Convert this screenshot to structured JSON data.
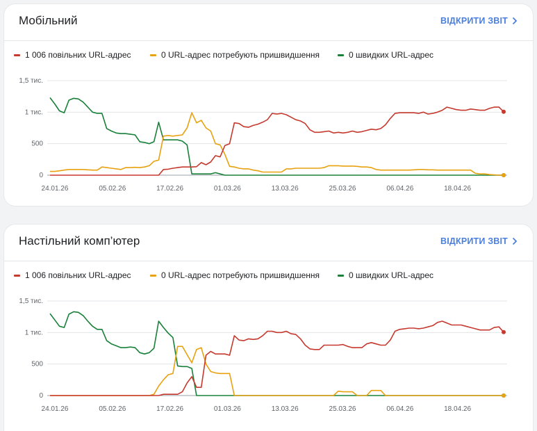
{
  "colors": {
    "slow": "#c5392f",
    "improve": "#e8a10f",
    "fast": "#188038",
    "link": "#4a7fe0"
  },
  "reports": [
    {
      "title": "Мобільний",
      "link_label": "ВІДКРИТИ ЗВІТ",
      "legend": [
        {
          "label": "1 006 повільних URL-адрес"
        },
        {
          "label": "0 URL-адрес потребують пришвидшення"
        },
        {
          "label": "0 швидких URL-адрес"
        }
      ],
      "chart_data": {
        "type": "line",
        "y_ticks": [
          "1,5 тис.",
          "1 тис.",
          "500",
          "0"
        ],
        "y_tick_values": [
          1500,
          1000,
          500,
          0
        ],
        "ylim": [
          0,
          1500
        ],
        "x_tick_labels": [
          "24.01.26",
          "05.02.26",
          "17.02.26",
          "01.03.26",
          "13.03.26",
          "25.03.26",
          "06.04.26",
          "18.04.26"
        ],
        "x_start": "24.01.26",
        "series": [
          {
            "color_key": "slow",
            "values": [
              0,
              0,
              0,
              0,
              0,
              0,
              0,
              0,
              0,
              0,
              0,
              0,
              0,
              0,
              0,
              0,
              0,
              0,
              0,
              0,
              0,
              0,
              0,
              0,
              90,
              95,
              110,
              120,
              130,
              130,
              130,
              135,
              200,
              165,
              210,
              310,
              290,
              470,
              500,
              830,
              820,
              770,
              760,
              790,
              810,
              840,
              880,
              980,
              970,
              980,
              960,
              920,
              880,
              860,
              820,
              720,
              680,
              680,
              690,
              700,
              670,
              680,
              670,
              680,
              700,
              680,
              690,
              710,
              730,
              720,
              740,
              800,
              900,
              980,
              990,
              990,
              990,
              990,
              980,
              1000,
              970,
              980,
              1000,
              1030,
              1080,
              1060,
              1040,
              1030,
              1030,
              1050,
              1040,
              1030,
              1030,
              1060,
              1080,
              1080,
              1006
            ]
          },
          {
            "color_key": "improve",
            "values": [
              60,
              60,
              70,
              80,
              90,
              90,
              90,
              90,
              85,
              80,
              80,
              130,
              120,
              110,
              100,
              90,
              120,
              120,
              125,
              120,
              130,
              150,
              220,
              240,
              620,
              630,
              620,
              630,
              640,
              750,
              990,
              830,
              870,
              750,
              700,
              500,
              480,
              330,
              140,
              130,
              110,
              100,
              100,
              80,
              70,
              50,
              50,
              50,
              50,
              50,
              100,
              100,
              110,
              110,
              110,
              110,
              110,
              110,
              120,
              150,
              150,
              150,
              145,
              145,
              145,
              140,
              130,
              130,
              120,
              90,
              80,
              80,
              80,
              80,
              80,
              80,
              80,
              85,
              90,
              90,
              85,
              85,
              80,
              80,
              80,
              80,
              80,
              80,
              80,
              80,
              30,
              20,
              20,
              10,
              5,
              0,
              0
            ]
          },
          {
            "color_key": "fast",
            "values": [
              1230,
              1130,
              1020,
              990,
              1190,
              1220,
              1210,
              1160,
              1080,
              1000,
              980,
              980,
              740,
              700,
              670,
              660,
              660,
              650,
              640,
              530,
              520,
              500,
              530,
              840,
              560,
              560,
              560,
              560,
              540,
              480,
              20,
              20,
              20,
              20,
              20,
              40,
              20,
              0,
              0,
              0,
              0,
              0,
              0,
              0,
              0,
              0,
              0,
              0,
              0,
              0,
              0,
              0,
              0,
              0,
              0,
              0,
              0,
              0,
              0,
              0,
              0,
              0,
              0,
              0,
              0,
              0,
              0,
              0,
              0,
              0,
              0,
              0,
              0,
              0,
              0,
              0,
              0,
              0,
              0,
              0,
              0,
              0,
              0,
              0,
              0,
              0,
              0,
              0,
              0,
              0,
              0,
              0,
              0,
              0,
              0,
              0,
              0
            ]
          }
        ]
      }
    },
    {
      "title": "Настільний комп’ютер",
      "link_label": "ВІДКРИТИ ЗВІТ",
      "legend": [
        {
          "label": "1 006 повільних URL-адрес"
        },
        {
          "label": "0 URL-адрес потребують пришвидшення"
        },
        {
          "label": "0 швидких URL-адрес"
        }
      ],
      "chart_data": {
        "type": "line",
        "y_ticks": [
          "1,5 тис.",
          "1 тис.",
          "500",
          "0"
        ],
        "y_tick_values": [
          1500,
          1000,
          500,
          0
        ],
        "ylim": [
          0,
          1500
        ],
        "x_tick_labels": [
          "24.01.26",
          "05.02.26",
          "17.02.26",
          "01.03.26",
          "13.03.26",
          "25.03.26",
          "06.04.26",
          "18.04.26"
        ],
        "x_start": "24.01.26",
        "series": [
          {
            "color_key": "slow",
            "values": [
              0,
              0,
              0,
              0,
              0,
              0,
              0,
              0,
              0,
              0,
              0,
              0,
              0,
              0,
              0,
              0,
              0,
              0,
              0,
              0,
              0,
              0,
              0,
              0,
              20,
              20,
              20,
              20,
              60,
              200,
              300,
              130,
              130,
              640,
              700,
              660,
              660,
              660,
              640,
              950,
              880,
              870,
              900,
              890,
              900,
              950,
              1020,
              1020,
              1000,
              1000,
              1020,
              980,
              970,
              900,
              800,
              740,
              730,
              730,
              800,
              800,
              800,
              800,
              810,
              780,
              760,
              760,
              760,
              820,
              840,
              820,
              800,
              800,
              880,
              1020,
              1050,
              1060,
              1070,
              1070,
              1060,
              1070,
              1090,
              1110,
              1160,
              1180,
              1150,
              1120,
              1120,
              1120,
              1100,
              1080,
              1060,
              1040,
              1040,
              1040,
              1080,
              1090,
              1006
            ]
          },
          {
            "color_key": "improve",
            "values": [
              0,
              0,
              0,
              0,
              0,
              0,
              0,
              0,
              0,
              0,
              0,
              0,
              0,
              0,
              0,
              0,
              0,
              0,
              0,
              0,
              0,
              0,
              20,
              150,
              250,
              330,
              350,
              780,
              780,
              650,
              520,
              730,
              760,
              500,
              380,
              360,
              350,
              350,
              350,
              0,
              0,
              0,
              0,
              0,
              0,
              0,
              0,
              0,
              0,
              0,
              0,
              0,
              0,
              0,
              0,
              0,
              0,
              0,
              0,
              0,
              0,
              70,
              60,
              60,
              60,
              0,
              0,
              0,
              80,
              80,
              80,
              0,
              0,
              0,
              0,
              0,
              0,
              0,
              0,
              0,
              0,
              0,
              0,
              0,
              0,
              0,
              0,
              0,
              0,
              0,
              0,
              0,
              0,
              0,
              0,
              0,
              0
            ]
          },
          {
            "color_key": "fast",
            "values": [
              1300,
              1200,
              1100,
              1080,
              1290,
              1330,
              1320,
              1270,
              1180,
              1100,
              1050,
              1050,
              870,
              820,
              790,
              760,
              760,
              770,
              760,
              680,
              660,
              680,
              750,
              1180,
              1080,
              990,
              920,
              470,
              460,
              460,
              430,
              0,
              0,
              0,
              0,
              0,
              0,
              0,
              0,
              0,
              0,
              0,
              0,
              0,
              0,
              0,
              0,
              0,
              0,
              0,
              0,
              0,
              0,
              0,
              0,
              0,
              0,
              0,
              0,
              0,
              0,
              0,
              0,
              0,
              0,
              0,
              0,
              0,
              0,
              0,
              0,
              0,
              0,
              0,
              0,
              0,
              0,
              0,
              0,
              0,
              0,
              0,
              0,
              0,
              0,
              0,
              0,
              0,
              0,
              0,
              0,
              0,
              0,
              0,
              0,
              0,
              0
            ]
          }
        ]
      }
    }
  ]
}
